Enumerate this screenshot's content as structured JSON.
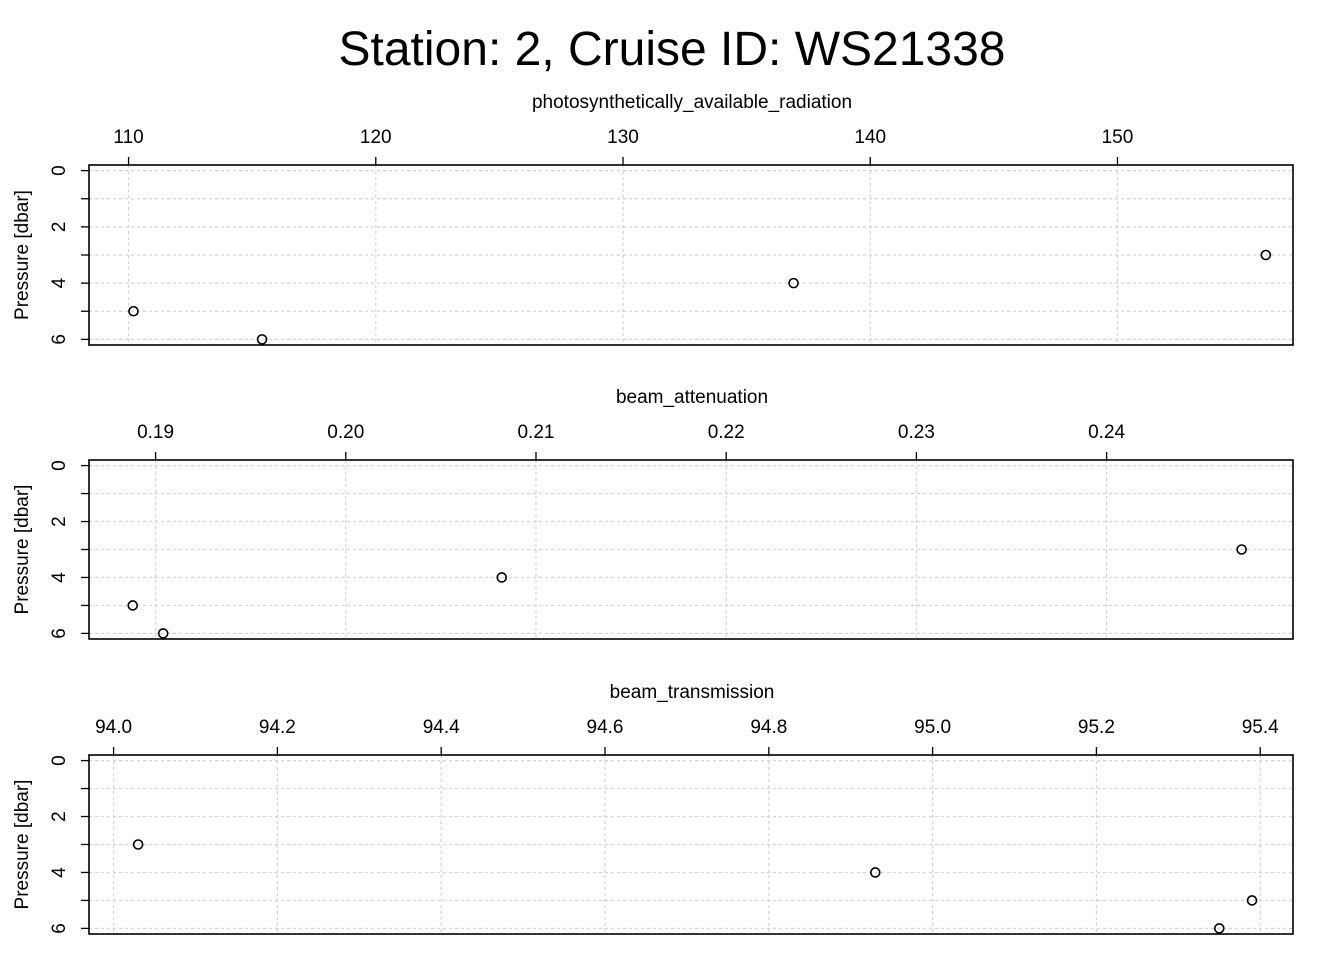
{
  "title": "Station: 2, Cruise ID: WS21338",
  "chart_data": [
    {
      "type": "scatter",
      "xlabel": "photosynthetically_available_radiation",
      "ylabel": "Pressure [dbar]",
      "xlim": [
        108.4,
        157.1
      ],
      "ylim": [
        6.2,
        -0.2
      ],
      "x_ticks": [
        "110",
        "120",
        "130",
        "140",
        "150"
      ],
      "x_tick_values": [
        110,
        120,
        130,
        140,
        150
      ],
      "y_ticks": [
        "0",
        "2",
        "4",
        "6"
      ],
      "y_tick_values": [
        0,
        2,
        4,
        6
      ],
      "grid": true,
      "points": [
        {
          "x": 156.0,
          "y": 3
        },
        {
          "x": 136.9,
          "y": 4
        },
        {
          "x": 110.2,
          "y": 5
        },
        {
          "x": 115.4,
          "y": 6
        }
      ]
    },
    {
      "type": "scatter",
      "xlabel": "beam_attenuation",
      "ylabel": "Pressure [dbar]",
      "xlim": [
        0.1865,
        0.2498
      ],
      "ylim": [
        6.2,
        -0.2
      ],
      "x_ticks": [
        "0.19",
        "0.20",
        "0.21",
        "0.22",
        "0.23",
        "0.24"
      ],
      "x_tick_values": [
        0.19,
        0.2,
        0.21,
        0.22,
        0.23,
        0.24
      ],
      "y_ticks": [
        "0",
        "2",
        "4",
        "6"
      ],
      "y_tick_values": [
        0,
        2,
        4,
        6
      ],
      "grid": true,
      "points": [
        {
          "x": 0.2471,
          "y": 3
        },
        {
          "x": 0.2082,
          "y": 4
        },
        {
          "x": 0.1888,
          "y": 5
        },
        {
          "x": 0.1904,
          "y": 6
        }
      ]
    },
    {
      "type": "scatter",
      "xlabel": "beam_transmission",
      "ylabel": "Pressure [dbar]",
      "xlim": [
        93.97,
        95.44
      ],
      "ylim": [
        6.2,
        -0.2
      ],
      "x_ticks": [
        "94.0",
        "94.2",
        "94.4",
        "94.6",
        "94.8",
        "95.0",
        "95.2",
        "95.4"
      ],
      "x_tick_values": [
        94.0,
        94.2,
        94.4,
        94.6,
        94.8,
        95.0,
        95.2,
        95.4
      ],
      "y_ticks": [
        "0",
        "2",
        "4",
        "6"
      ],
      "y_tick_values": [
        0,
        2,
        4,
        6
      ],
      "grid": true,
      "points": [
        {
          "x": 94.03,
          "y": 3
        },
        {
          "x": 94.93,
          "y": 4
        },
        {
          "x": 95.39,
          "y": 5
        },
        {
          "x": 95.35,
          "y": 6
        }
      ]
    }
  ]
}
